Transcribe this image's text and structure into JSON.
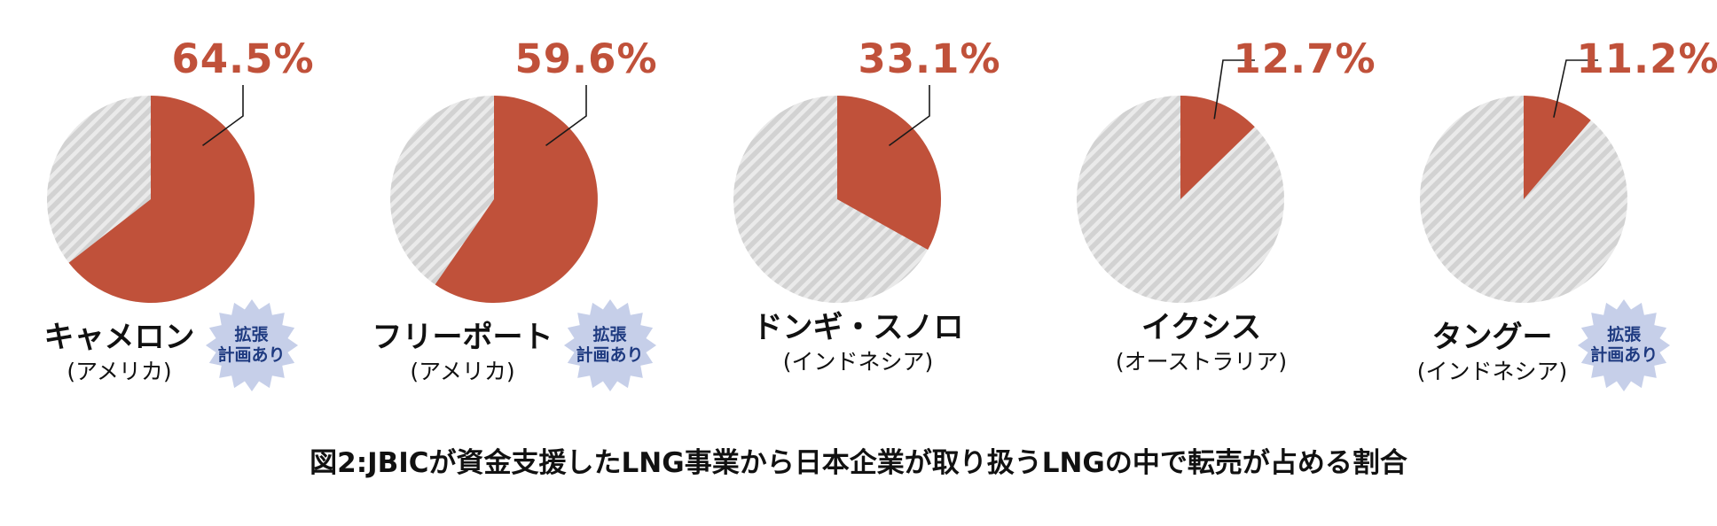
{
  "colors": {
    "pie_red": "#c0513a",
    "hatch_base": "#d2d2d2",
    "hatch_stripe": "#eaeaea",
    "percent_text": "#c0513a",
    "leader_line": "#1a1a1a",
    "badge_fill": "#c6cfe9",
    "badge_text": "#1e3a80",
    "label_text": "#111111"
  },
  "badge": {
    "line1": "拡張",
    "line2": "計画あり"
  },
  "chart_data": {
    "type": "pie",
    "unit": "%",
    "title": "図2:JBICが資金支援したLNG事業から日本企業が取り扱うLNGの中で転売が占める割合",
    "legend_position": "none",
    "slice_start": "12-oclock-clockwise",
    "charts": [
      {
        "name": "キャメロン",
        "country_label": "(アメリカ)",
        "value": 64.5,
        "value_label": "64.5%",
        "expansion_badge": true
      },
      {
        "name": "フリーポート",
        "country_label": "(アメリカ)",
        "value": 59.6,
        "value_label": "59.6%",
        "expansion_badge": true
      },
      {
        "name": "ドンギ・スノロ",
        "country_label": "(インドネシア)",
        "value": 33.1,
        "value_label": "33.1%",
        "expansion_badge": false
      },
      {
        "name": "イクシス",
        "country_label": "(オーストラリア)",
        "value": 12.7,
        "value_label": "12.7%",
        "expansion_badge": false
      },
      {
        "name": "タングー",
        "country_label": "(インドネシア)",
        "value": 11.2,
        "value_label": "11.2%",
        "expansion_badge": true
      }
    ]
  }
}
